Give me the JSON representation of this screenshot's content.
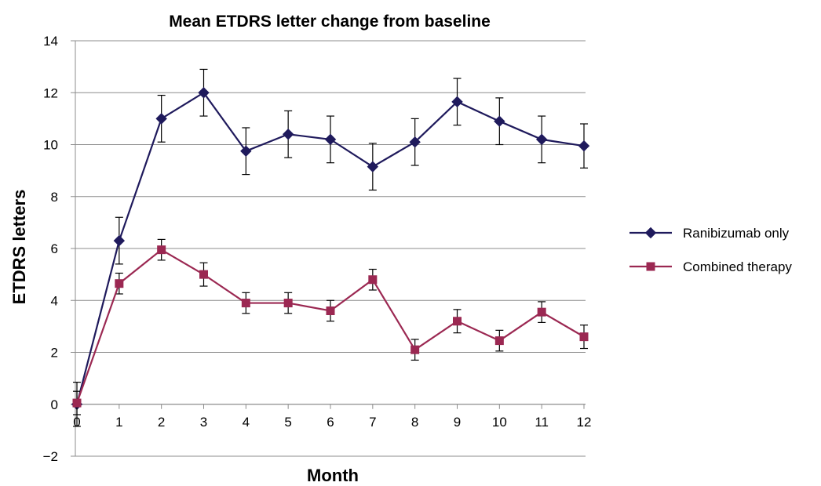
{
  "chart_data": {
    "type": "line",
    "title": "Mean ETDRS letter change from baseline",
    "xlabel": "Month",
    "ylabel": "ETDRS letters",
    "categories": [
      0,
      1,
      2,
      3,
      4,
      5,
      6,
      7,
      8,
      9,
      10,
      11,
      12
    ],
    "ylim": [
      -2,
      14
    ],
    "yticks": [
      -2,
      0,
      2,
      4,
      6,
      8,
      10,
      12,
      14
    ],
    "ytick_labels": [
      "−2",
      "0",
      "2",
      "4",
      "6",
      "8",
      "10",
      "12",
      "14"
    ],
    "grid": true,
    "legend_position": "right",
    "series": [
      {
        "name": "Ranibizumab only",
        "color": "#1f1a5c",
        "marker": "diamond",
        "values": [
          0.0,
          6.3,
          11.0,
          12.0,
          9.75,
          10.4,
          10.2,
          9.15,
          10.1,
          11.65,
          10.9,
          10.2,
          9.95
        ],
        "error": [
          0.85,
          0.9,
          0.9,
          0.9,
          0.9,
          0.9,
          0.9,
          0.9,
          0.9,
          0.9,
          0.9,
          0.9,
          0.85
        ]
      },
      {
        "name": "Combined therapy",
        "color": "#9b2852",
        "marker": "square",
        "values": [
          0.05,
          4.65,
          5.95,
          5.0,
          3.9,
          3.9,
          3.6,
          4.8,
          2.1,
          3.2,
          2.45,
          3.55,
          2.6
        ],
        "error": [
          0.45,
          0.4,
          0.4,
          0.45,
          0.4,
          0.4,
          0.4,
          0.4,
          0.4,
          0.45,
          0.4,
          0.4,
          0.45
        ]
      }
    ]
  }
}
